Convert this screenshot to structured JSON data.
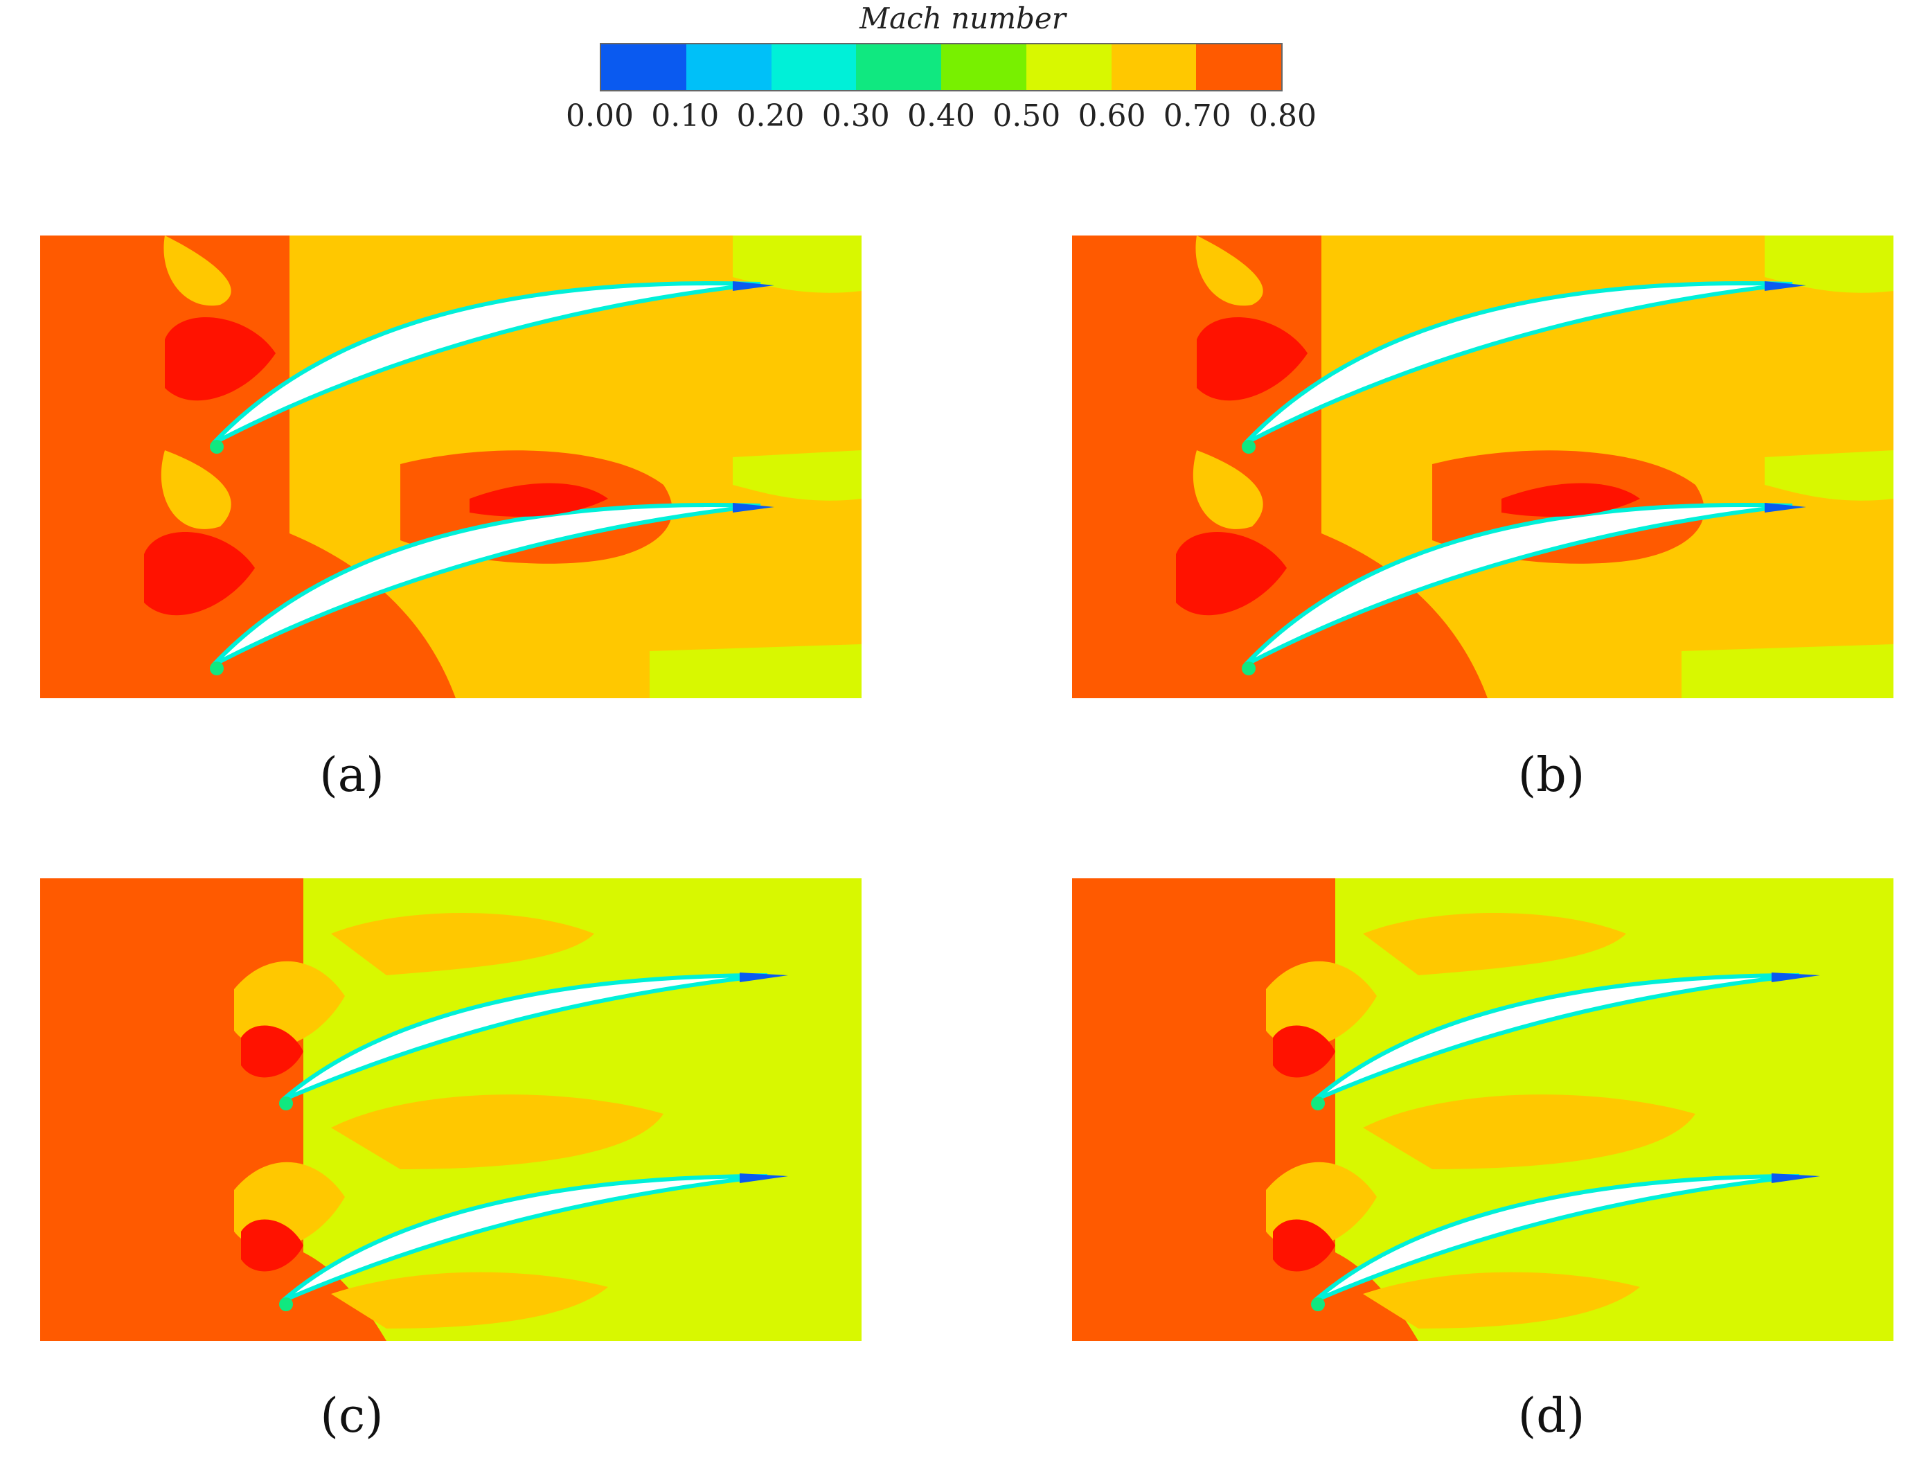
{
  "legend": {
    "title": "Mach number",
    "ticks": [
      "0.00",
      "0.10",
      "0.20",
      "0.30",
      "0.40",
      "0.50",
      "0.60",
      "0.70",
      "0.80"
    ],
    "colors": [
      "#0a5af0",
      "#00c0f8",
      "#00f0d8",
      "#10e880",
      "#78f000",
      "#d8f800",
      "#ffc800",
      "#ff5a00"
    ]
  },
  "panels": [
    {
      "label": "(a)"
    },
    {
      "label": "(b)"
    },
    {
      "label": "(c)"
    },
    {
      "label": "(d)"
    }
  ],
  "palette": {
    "orange": "#ff5a00",
    "red": "#ff1200",
    "amber": "#ffc800",
    "yellow_green": "#d8f800",
    "green": "#10e880",
    "cyan": "#00f0d8",
    "blue": "#0a5af0",
    "blade": "#ffffff"
  }
}
